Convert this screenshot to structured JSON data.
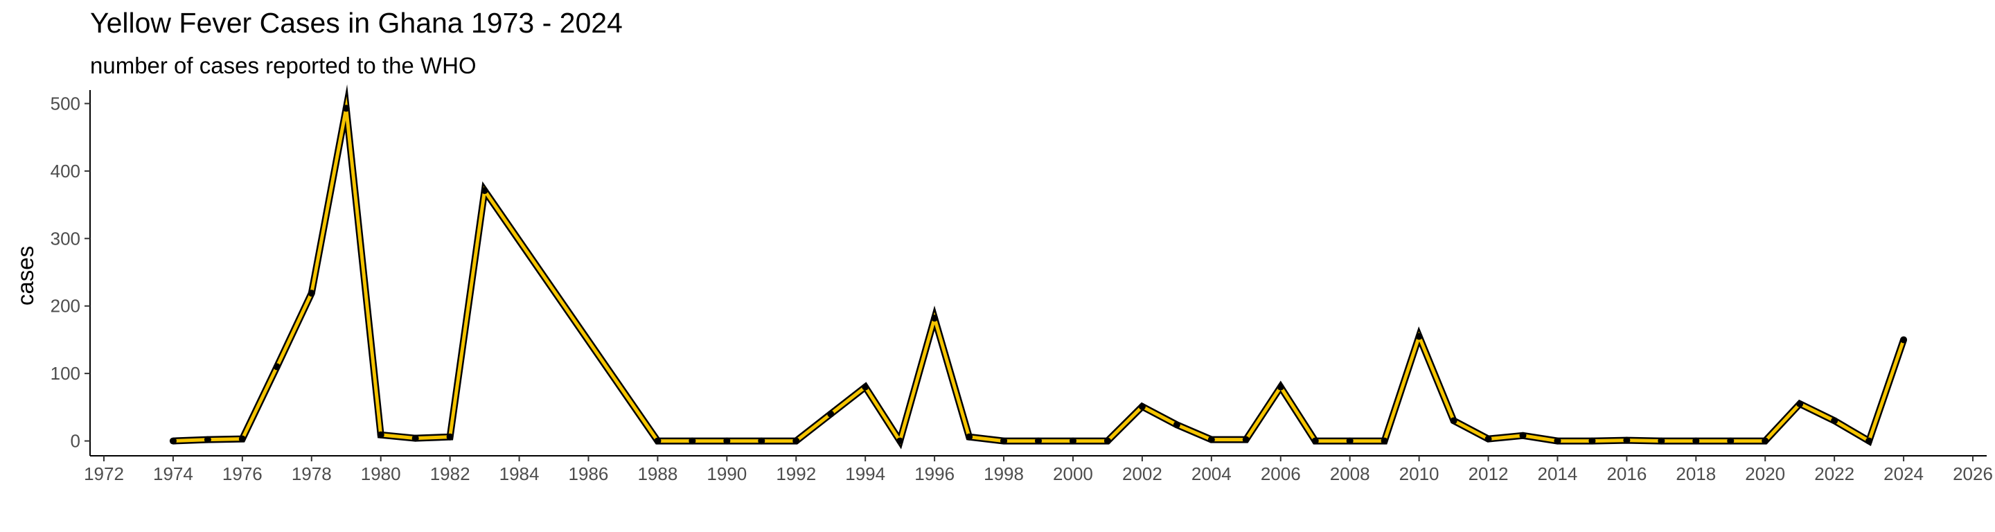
{
  "chart_data": {
    "type": "line",
    "title": "Yellow Fever Cases in Ghana 1973 - 2024",
    "subtitle": "number of cases reported to the WHO",
    "xlabel": "",
    "ylabel": "cases",
    "xlim": [
      1971.6,
      2026.4
    ],
    "ylim": [
      -22,
      520
    ],
    "x_ticks": [
      1972,
      1974,
      1976,
      1978,
      1980,
      1982,
      1984,
      1986,
      1988,
      1990,
      1992,
      1994,
      1996,
      1998,
      2000,
      2002,
      2004,
      2006,
      2008,
      2010,
      2012,
      2014,
      2016,
      2018,
      2020,
      2022,
      2024,
      2026
    ],
    "y_ticks": [
      0,
      100,
      200,
      300,
      400,
      500
    ],
    "grid": false,
    "line_color": "#F5C400",
    "outline_color": "#000000",
    "point_color": "#000000",
    "x": [
      1974,
      1975,
      1976,
      1977,
      1978,
      1979,
      1980,
      1981,
      1982,
      1983,
      1988,
      1989,
      1990,
      1991,
      1992,
      1993,
      1994,
      1995,
      1996,
      1997,
      1998,
      1999,
      2000,
      2001,
      2002,
      2003,
      2004,
      2005,
      2006,
      2007,
      2008,
      2009,
      2010,
      2011,
      2012,
      2013,
      2014,
      2015,
      2016,
      2017,
      2018,
      2019,
      2020,
      2021,
      2022,
      2023,
      2024
    ],
    "values": [
      0,
      2,
      3,
      110,
      219,
      493,
      9,
      4,
      6,
      371,
      0,
      0,
      0,
      0,
      0,
      40,
      80,
      0,
      182,
      6,
      0,
      0,
      0,
      0,
      51,
      24,
      2,
      2,
      80,
      0,
      0,
      0,
      155,
      30,
      3,
      8,
      0,
      0,
      1,
      0,
      0,
      0,
      0,
      55,
      30,
      0,
      150
    ]
  }
}
